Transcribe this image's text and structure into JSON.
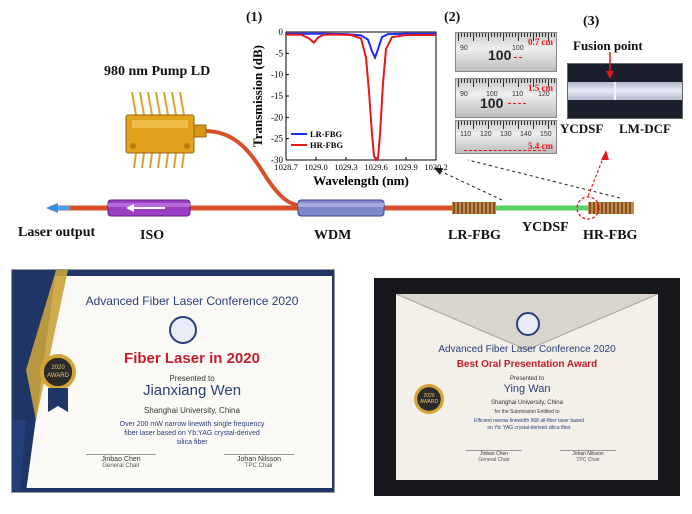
{
  "diagram": {
    "pump_label": "980 nm Pump LD",
    "laser_output_label": "Laser output",
    "components": {
      "iso": "ISO",
      "wdm": "WDM",
      "lr_fbg": "LR-FBG",
      "ycdsf": "YCDSF",
      "hr_fbg": "HR-FBG"
    },
    "panel_labels": {
      "p1": "(1)",
      "p2": "(2)",
      "p3": "(3)"
    },
    "fusion": {
      "title": "Fusion point",
      "left_fiber": "YCDSF",
      "right_fiber": "LM-DCF"
    },
    "ruler_photos": [
      {
        "measure": "0.7 cm",
        "center_number": "100",
        "ticks": [
          "90",
          "",
          "100",
          ""
        ]
      },
      {
        "measure": "1.5 cm",
        "center_number": "100",
        "ticks": [
          "90",
          "100",
          "110",
          "120"
        ]
      },
      {
        "measure": "5.4 cm",
        "center_number": "100",
        "ticks": [
          "110",
          "120",
          "130",
          "140",
          "150"
        ]
      }
    ],
    "colors": {
      "fiber": "#d7502a",
      "ycdsf_fiber": "#58d36a",
      "iso_body": "#9a3fc2",
      "wdm_body": "#7f86c9",
      "pump_body": "#e3a21c",
      "lr_color": "#1f2bff",
      "hr_color": "#e31a1c"
    }
  },
  "chart_data": {
    "type": "line",
    "xlabel": "Wavelength (nm)",
    "ylabel": "Transmission (dB)",
    "xlim": [
      1028.7,
      1030.2
    ],
    "ylim": [
      -30,
      0
    ],
    "x_ticks": [
      "1028.7",
      "1029.0",
      "1029.3",
      "1029.6",
      "1029.9",
      "1030.2"
    ],
    "y_ticks": [
      "0",
      "-5",
      "-10",
      "-15",
      "-20",
      "-25",
      "-30"
    ],
    "legend_position": "bottom-left",
    "series": [
      {
        "name": "LR-FBG",
        "color": "#1f2bff",
        "x": [
          1028.7,
          1028.9,
          1029.1,
          1029.3,
          1029.45,
          1029.52,
          1029.56,
          1029.59,
          1029.62,
          1029.66,
          1029.72,
          1029.9,
          1030.2
        ],
        "y": [
          -0.4,
          -0.4,
          -0.4,
          -0.5,
          -0.8,
          -1.8,
          -4.5,
          -6.0,
          -4.0,
          -1.2,
          -0.5,
          -0.4,
          -0.4
        ]
      },
      {
        "name": "HR-FBG",
        "color": "#e31a1c",
        "x": [
          1028.7,
          1028.85,
          1028.93,
          1028.98,
          1029.02,
          1029.08,
          1029.2,
          1029.35,
          1029.45,
          1029.5,
          1029.53,
          1029.56,
          1029.58,
          1029.6,
          1029.62,
          1029.64,
          1029.67,
          1029.7,
          1029.76,
          1029.9,
          1030.2
        ],
        "y": [
          -0.6,
          -0.6,
          -1.5,
          -2.5,
          -1.3,
          -0.6,
          -0.6,
          -0.7,
          -1.5,
          -6,
          -14,
          -24,
          -29,
          -30,
          -29.5,
          -24,
          -12,
          -4,
          -1.2,
          -0.7,
          -0.7
        ]
      }
    ]
  },
  "certificates": [
    {
      "conference": "Advanced Fiber Laser Conference 2020",
      "award": "Fiber Laser in 2020",
      "presented_to": "Presented to",
      "recipient": "Jianxiang Wen",
      "affiliation": "Shanghai University, China",
      "description": "Over 200 mW narrow linewith single frequency fiber laser based on Yb:YAG crystal-derived silica fiber",
      "badge_top": "2020",
      "badge_bottom": "AWARD",
      "signatures": [
        {
          "name": "Jinbao Chen",
          "role": "General Chair"
        },
        {
          "name": "Johan Nilsson",
          "role": "TPC Chair"
        }
      ]
    },
    {
      "conference": "Advanced Fiber Laser Conference 2020",
      "award": "Best Oral Presentation Award",
      "presented_to": "Presented to",
      "recipient": "Ying Wan",
      "affiliation": "Shanghai University, China",
      "for_line": "for the Submission Entitled to",
      "description": "Efficient narrow linewidth 968 all-fiber laser based on Yb: YAG crystal-derived silica fiber",
      "badge_top": "2020",
      "badge_bottom": "AWARD",
      "signatures": [
        {
          "name": "Jinbao Chen",
          "role": "General Chair"
        },
        {
          "name": "Johan Nilsson",
          "role": "TPC Chair"
        }
      ]
    }
  ]
}
